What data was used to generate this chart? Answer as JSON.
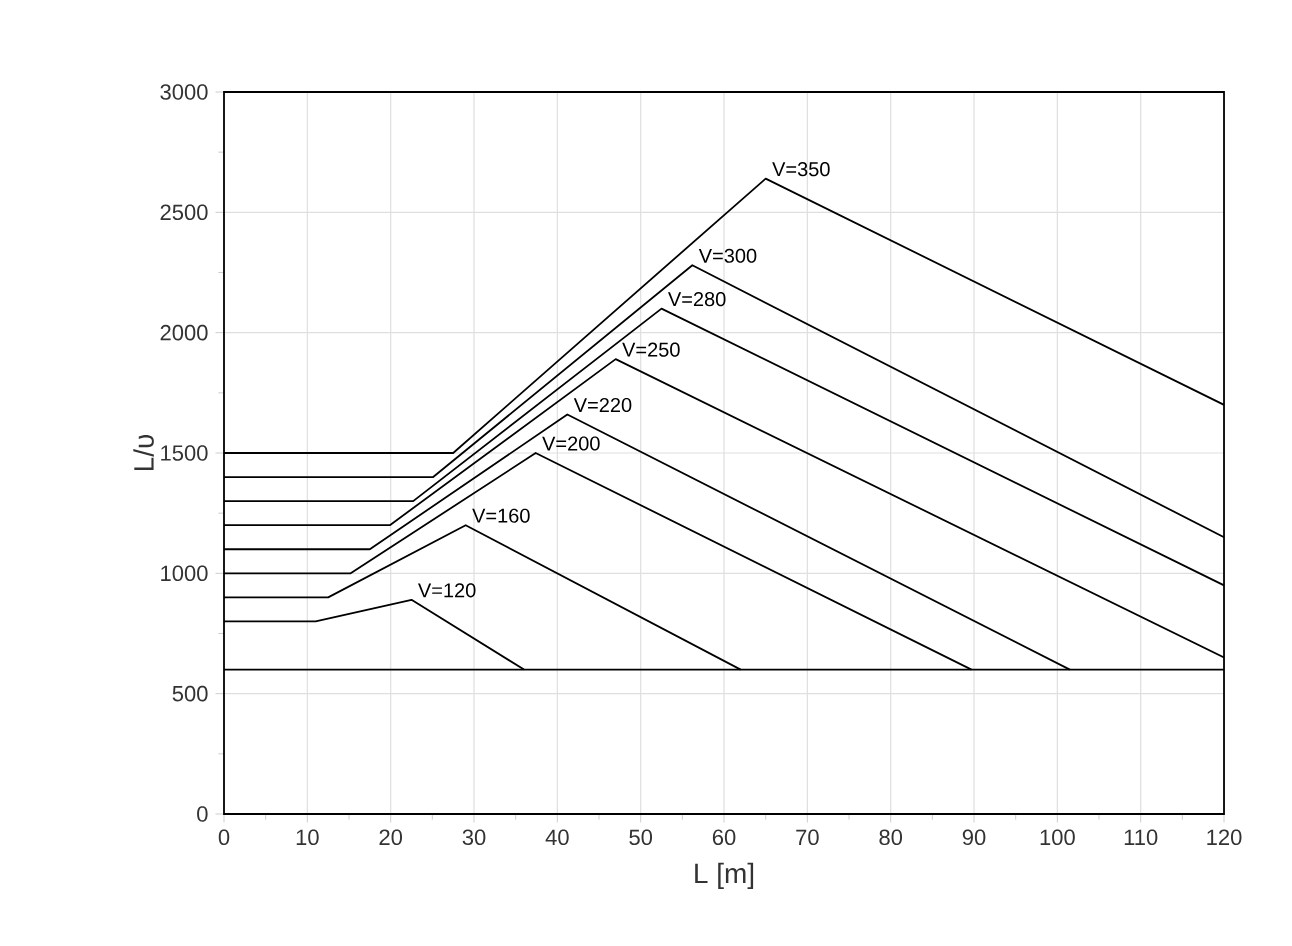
{
  "chart_data": {
    "type": "line",
    "xlabel": "L [m]",
    "ylabel": "L/υ",
    "xlim": [
      0,
      120
    ],
    "ylim": [
      0,
      3000
    ],
    "xticks": [
      0,
      10,
      20,
      30,
      40,
      50,
      60,
      70,
      80,
      90,
      100,
      110,
      120
    ],
    "yticks": [
      0,
      500,
      1000,
      1500,
      2000,
      2500,
      3000
    ],
    "grid": true,
    "marker": "none",
    "line_style": "solid",
    "series": [
      {
        "name": "V=120",
        "color": "#000000",
        "x": [
          0,
          11,
          22.5,
          36
        ],
        "values": [
          800,
          800,
          890,
          600
        ]
      },
      {
        "name": "V=160",
        "color": "#000000",
        "x": [
          0,
          12.5,
          29,
          62
        ],
        "values": [
          900,
          900,
          1200,
          600
        ]
      },
      {
        "name": "V=200",
        "color": "#000000",
        "x": [
          0,
          15.2,
          37.4,
          89.7
        ],
        "values": [
          1000,
          1000,
          1500,
          600
        ]
      },
      {
        "name": "V=220",
        "color": "#000000",
        "x": [
          0,
          17.5,
          41.2,
          101.5
        ],
        "values": [
          1100,
          1100,
          1660,
          600
        ]
      },
      {
        "name": "V=250",
        "color": "#000000",
        "x": [
          0,
          19.9,
          47,
          120
        ],
        "values": [
          1200,
          1200,
          1890,
          650
        ]
      },
      {
        "name": "V=280",
        "color": "#000000",
        "x": [
          0,
          22.7,
          52.5,
          120
        ],
        "values": [
          1300,
          1300,
          2100,
          950
        ]
      },
      {
        "name": "V=300",
        "color": "#000000",
        "x": [
          0,
          25.1,
          56.2,
          120
        ],
        "values": [
          1400,
          1400,
          2280,
          1150
        ]
      },
      {
        "name": "V=350",
        "color": "#000000",
        "x": [
          0,
          27.5,
          65,
          120
        ],
        "values": [
          1500,
          1500,
          2640,
          1700
        ]
      },
      {
        "color": "#000000",
        "x": [
          0,
          120
        ],
        "values": [
          600,
          600
        ]
      }
    ]
  }
}
